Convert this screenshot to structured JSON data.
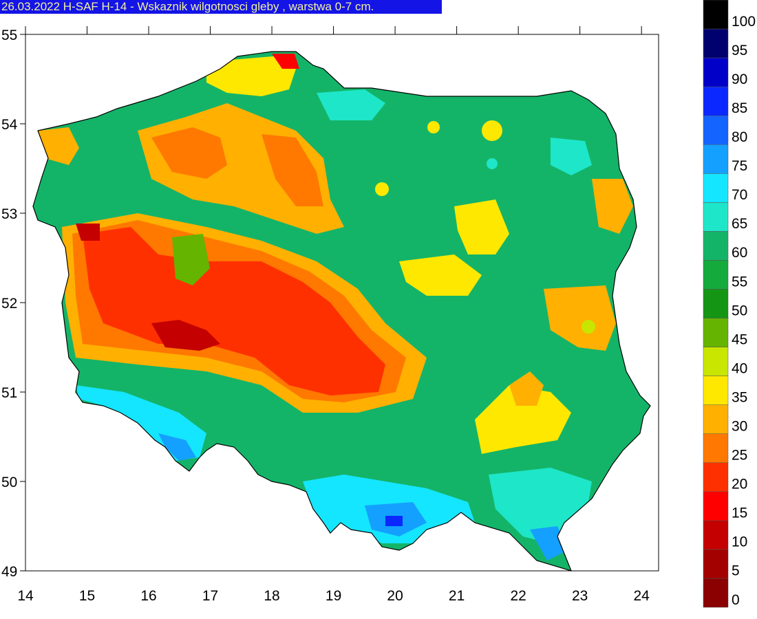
{
  "title": "26.03.2022 H-SAF H-14 - Wskaznik wilgotnosci gleby , warstwa 0-7 cm.",
  "map": {
    "x_axis": {
      "min": 14,
      "max": 24,
      "ticks": [
        "14",
        "15",
        "16",
        "17",
        "18",
        "19",
        "20",
        "21",
        "22",
        "23",
        "24"
      ]
    },
    "y_axis": {
      "min": 49,
      "max": 55,
      "ticks": [
        "49",
        "50",
        "51",
        "52",
        "53",
        "54",
        "55"
      ]
    }
  },
  "legend": {
    "labels": [
      "0",
      "5",
      "10",
      "15",
      "20",
      "25",
      "30",
      "35",
      "40",
      "45",
      "50",
      "55",
      "60",
      "65",
      "70",
      "75",
      "80",
      "85",
      "90",
      "95",
      "100"
    ],
    "colors": [
      "#8b0000",
      "#a30000",
      "#c40000",
      "#ff0000",
      "#ff3000",
      "#ff7800",
      "#ffb000",
      "#ffe800",
      "#c8e600",
      "#64b400",
      "#149614",
      "#14aa3c",
      "#14b468",
      "#1ee6c8",
      "#14e6ff",
      "#14a0ff",
      "#1464ff",
      "#0a28ff",
      "#0000c8",
      "#00006e",
      "#000000"
    ]
  },
  "colors": {
    "title_bg": "#1414e6",
    "title_fg": "#f2f2a0",
    "sea": "#ffffff"
  }
}
